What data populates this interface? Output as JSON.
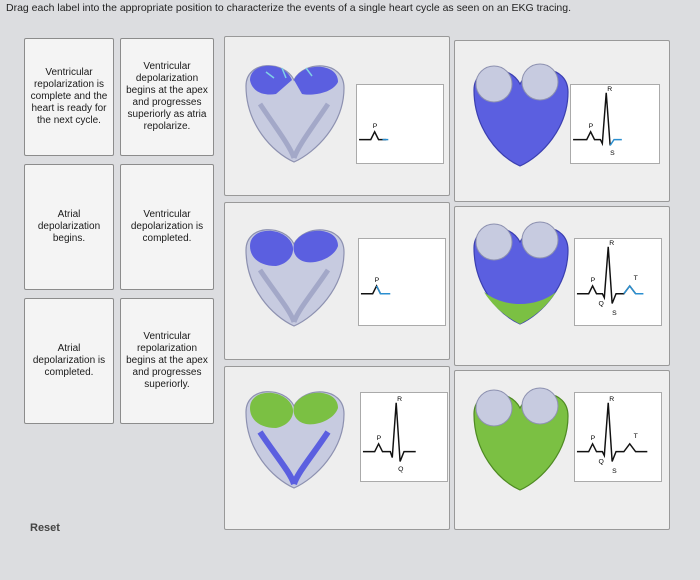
{
  "instruction": "Drag each label into the appropriate position to characterize the events of a single heart cycle as seen on an EKG tracing.",
  "labels": [
    "Ventricular repolarization is complete and the heart is ready for the next cycle.",
    "Ventricular depolarization begins at the apex and progresses superiorly as atria repolarize.",
    "Atrial depolarization begins.",
    "Ventricular depolarization is completed.",
    "Atrial depolarization is completed.",
    "Ventricular repolarization begins at the apex and progresses superiorly."
  ],
  "ekg_letters": {
    "p": "P",
    "q": "Q",
    "r": "R",
    "s": "S",
    "t": "T"
  },
  "reset_label": "Reset",
  "colors": {
    "depolarized_blue": "#5b5fe0",
    "repolarized_green": "#7bc043",
    "heart_gray": "#c7cbe0"
  }
}
